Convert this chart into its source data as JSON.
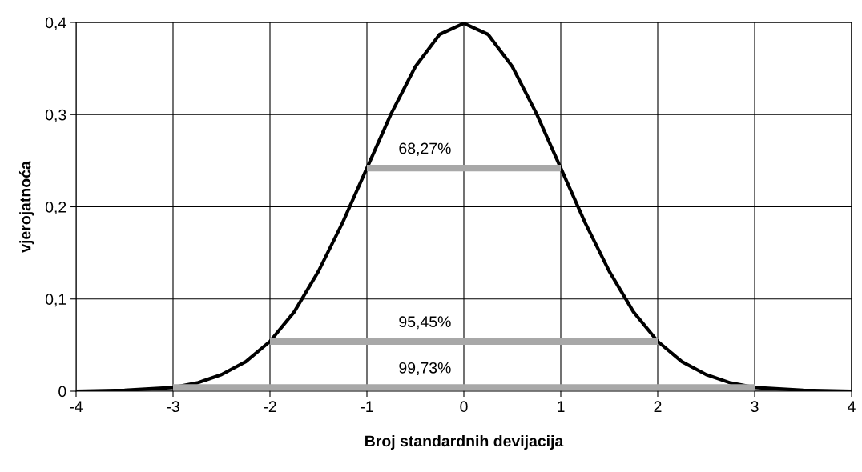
{
  "chart_data": {
    "type": "line",
    "xlabel": "Broj standardnih devijacija",
    "ylabel": "vjerojatnoća",
    "series": [
      {
        "color": "#000000",
        "x": [
          -4,
          -3.5,
          -3,
          -2.75,
          -2.5,
          -2.25,
          -2,
          -1.75,
          -1.5,
          -1.25,
          -1,
          -0.75,
          -0.5,
          -0.25,
          0,
          0.25,
          0.5,
          0.75,
          1,
          1.25,
          1.5,
          1.75,
          2,
          2.25,
          2.5,
          2.75,
          3,
          3.5,
          4
        ],
        "values": [
          0.0,
          0.001,
          0.004,
          0.009,
          0.018,
          0.032,
          0.054,
          0.086,
          0.13,
          0.183,
          0.242,
          0.301,
          0.352,
          0.387,
          0.399,
          0.387,
          0.352,
          0.301,
          0.242,
          0.183,
          0.13,
          0.086,
          0.054,
          0.032,
          0.018,
          0.009,
          0.004,
          0.001,
          0.0
        ]
      },
      {
        "color": "#a8a8a8",
        "x": [
          -1,
          1
        ],
        "values": [
          0.242,
          0.242
        ]
      },
      {
        "color": "#a8a8a8",
        "x": [
          -2,
          2
        ],
        "values": [
          0.054,
          0.054
        ]
      },
      {
        "color": "#a8a8a8",
        "x": [
          -3,
          3
        ],
        "values": [
          0.004,
          0.004
        ]
      }
    ],
    "annotations": [
      "68,27%",
      "95,45%",
      "99,73%"
    ],
    "xlim": [
      -4,
      4
    ],
    "xticks": [
      -4,
      -3,
      -2,
      -1,
      0,
      1,
      2,
      3,
      4
    ],
    "ylim": [
      0,
      0.4
    ],
    "yticks": [
      0,
      {
        "value": 0.1,
        "label": "0,1"
      },
      {
        "value": 0.2,
        "label": "0,2"
      },
      {
        "value": 0.3,
        "label": "0,3"
      },
      {
        "value": 0.4,
        "label": "0,4"
      }
    ],
    "grid": true,
    "marker": "none",
    "line_style": "solid"
  }
}
